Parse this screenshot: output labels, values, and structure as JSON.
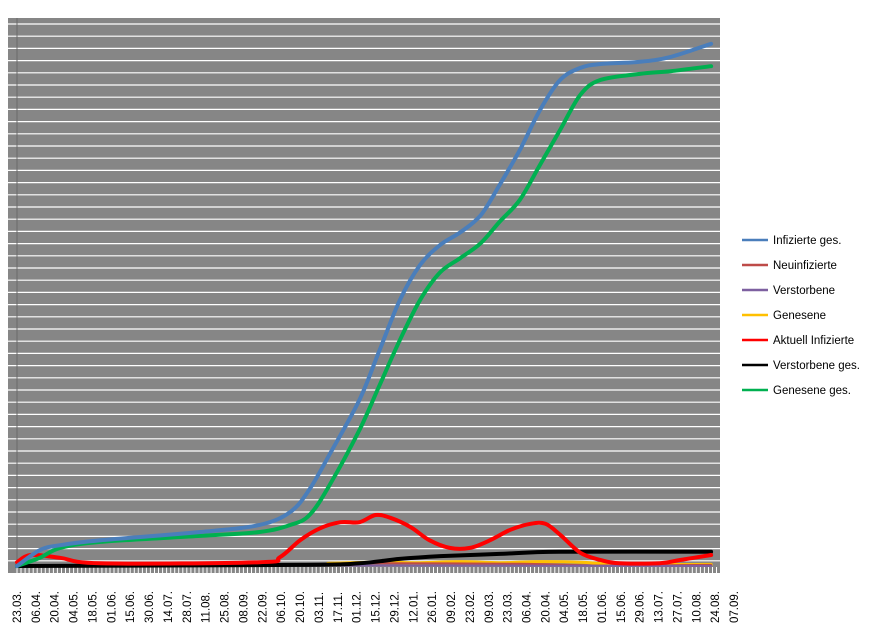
{
  "chart_data": {
    "type": "line",
    "title": "",
    "xlabel": "",
    "ylabel": "",
    "x_tick_labels": [
      "23.03.",
      "06.04.",
      "20.04.",
      "04.05.",
      "18.05.",
      "01.06.",
      "15.06.",
      "30.06.",
      "14.07.",
      "28.07.",
      "11.08.",
      "25.08.",
      "08.09.",
      "22.09.",
      "06.10.",
      "20.10.",
      "03.11.",
      "17.11.",
      "01.12.",
      "15.12.",
      "29.12.",
      "12.01.",
      "26.01.",
      "09.02.",
      "23.02.",
      "09.03.",
      "23.03.",
      "06.04.",
      "20.04.",
      "04.05.",
      "18.05.",
      "01.06.",
      "15.06.",
      "29.06.",
      "13.07.",
      "27.07.",
      "10.08.",
      "24.08.",
      "07.09."
    ],
    "x_range": [
      "2020-03-23",
      "2021-09-07"
    ],
    "y_scale": "relative (0-100 of plot height, no y tick labels shown)",
    "ylim": [
      0,
      100
    ],
    "grid": true,
    "plot_background": "#868686",
    "gridline_color": "#ffffff",
    "legend_position": "right",
    "series": [
      {
        "name": "Infizierte ges.",
        "color": "#4a7ebb",
        "points": [
          [
            "2020-03-23",
            0
          ],
          [
            "2020-04-09",
            2.9
          ],
          [
            "2020-04-24",
            3.8
          ],
          [
            "2020-05-24",
            4.7
          ],
          [
            "2020-08-06",
            6.2
          ],
          [
            "2020-09-19",
            7.5
          ],
          [
            "2020-10-12",
            9.9
          ],
          [
            "2020-10-26",
            14.0
          ],
          [
            "2020-11-10",
            20.4
          ],
          [
            "2020-12-02",
            30.3
          ],
          [
            "2020-12-17",
            39.4
          ],
          [
            "2021-01-01",
            48.5
          ],
          [
            "2021-01-16",
            54.9
          ],
          [
            "2021-01-31",
            58.6
          ],
          [
            "2021-02-15",
            60.9
          ],
          [
            "2021-03-02",
            64.0
          ],
          [
            "2021-03-16",
            69.5
          ],
          [
            "2021-03-31",
            75.9
          ],
          [
            "2021-04-15",
            83.2
          ],
          [
            "2021-04-30",
            88.7
          ],
          [
            "2021-05-15",
            90.9
          ],
          [
            "2021-05-30",
            91.6
          ],
          [
            "2021-06-28",
            92.0
          ],
          [
            "2021-07-21",
            92.9
          ],
          [
            "2021-08-20",
            95.3
          ]
        ]
      },
      {
        "name": "Neuinfizierte",
        "color": "#be4b48",
        "points": [
          [
            "2020-03-23",
            0.3
          ],
          [
            "2020-04-24",
            0.1
          ],
          [
            "2020-10-12",
            0.2
          ],
          [
            "2020-12-17",
            0.5
          ],
          [
            "2021-03-31",
            0.4
          ],
          [
            "2021-05-30",
            0.1
          ],
          [
            "2021-08-20",
            0.2
          ]
        ]
      },
      {
        "name": "Verstorbene",
        "color": "#7d60a0",
        "points": [
          [
            "2020-03-23",
            0
          ],
          [
            "2020-12-17",
            0.1
          ],
          [
            "2021-08-20",
            0
          ]
        ]
      },
      {
        "name": "Genesene",
        "color": "#ffc000",
        "points": [
          [
            "2020-03-23",
            0
          ],
          [
            "2020-10-26",
            0.2
          ],
          [
            "2020-11-10",
            0.5
          ],
          [
            "2020-12-17",
            0.7
          ],
          [
            "2021-01-16",
            0.6
          ],
          [
            "2021-02-15",
            0.8
          ],
          [
            "2021-03-16",
            0.6
          ],
          [
            "2021-04-15",
            0.8
          ],
          [
            "2021-05-15",
            0.7
          ],
          [
            "2021-06-13",
            0.3
          ],
          [
            "2021-08-20",
            0.3
          ]
        ]
      },
      {
        "name": "Aktuell Infizierte",
        "color": "#ff0000",
        "points": [
          [
            "2020-03-23",
            0.7
          ],
          [
            "2020-04-02",
            2.0
          ],
          [
            "2020-04-24",
            1.5
          ],
          [
            "2020-05-24",
            0.5
          ],
          [
            "2020-09-19",
            0.7
          ],
          [
            "2020-10-04",
            1.6
          ],
          [
            "2020-10-19",
            4.7
          ],
          [
            "2020-11-03",
            6.9
          ],
          [
            "2020-11-18",
            8.0
          ],
          [
            "2020-12-02",
            8.0
          ],
          [
            "2020-12-14",
            9.3
          ],
          [
            "2020-12-25",
            8.8
          ],
          [
            "2021-01-09",
            7.1
          ],
          [
            "2021-01-23",
            4.7
          ],
          [
            "2021-02-07",
            3.3
          ],
          [
            "2021-02-22",
            3.3
          ],
          [
            "2021-03-09",
            4.7
          ],
          [
            "2021-03-24",
            6.6
          ],
          [
            "2021-04-08",
            7.7
          ],
          [
            "2021-04-19",
            7.7
          ],
          [
            "2021-04-30",
            5.7
          ],
          [
            "2021-05-15",
            2.4
          ],
          [
            "2021-05-30",
            1.1
          ],
          [
            "2021-06-13",
            0.5
          ],
          [
            "2021-07-13",
            0.5
          ],
          [
            "2021-07-28",
            1.1
          ],
          [
            "2021-08-20",
            2.0
          ]
        ]
      },
      {
        "name": "Verstorbene ges.",
        "color": "#000000",
        "points": [
          [
            "2020-03-23",
            0
          ],
          [
            "2020-10-19",
            0.2
          ],
          [
            "2020-12-02",
            0.5
          ],
          [
            "2021-01-01",
            1.3
          ],
          [
            "2021-01-31",
            1.8
          ],
          [
            "2021-03-16",
            2.2
          ],
          [
            "2021-04-30",
            2.6
          ],
          [
            "2021-08-20",
            2.6
          ]
        ]
      },
      {
        "name": "Genesene ges.",
        "color": "#00b050",
        "points": [
          [
            "2020-03-23",
            0
          ],
          [
            "2020-04-09",
            1.5
          ],
          [
            "2020-04-24",
            3.3
          ],
          [
            "2020-05-24",
            4.4
          ],
          [
            "2020-08-06",
            5.5
          ],
          [
            "2020-09-19",
            6.2
          ],
          [
            "2020-10-12",
            7.5
          ],
          [
            "2020-10-26",
            9.3
          ],
          [
            "2020-11-10",
            14.8
          ],
          [
            "2020-12-02",
            24.8
          ],
          [
            "2020-12-17",
            33.0
          ],
          [
            "2021-01-01",
            41.2
          ],
          [
            "2021-01-16",
            48.5
          ],
          [
            "2021-01-31",
            53.6
          ],
          [
            "2021-02-15",
            56.2
          ],
          [
            "2021-03-02",
            58.9
          ],
          [
            "2021-03-16",
            62.8
          ],
          [
            "2021-03-31",
            66.8
          ],
          [
            "2021-04-15",
            73.2
          ],
          [
            "2021-04-30",
            79.6
          ],
          [
            "2021-05-15",
            86.0
          ],
          [
            "2021-05-30",
            88.7
          ],
          [
            "2021-06-28",
            89.8
          ],
          [
            "2021-07-21",
            90.3
          ],
          [
            "2021-08-20",
            91.2
          ]
        ]
      }
    ]
  }
}
